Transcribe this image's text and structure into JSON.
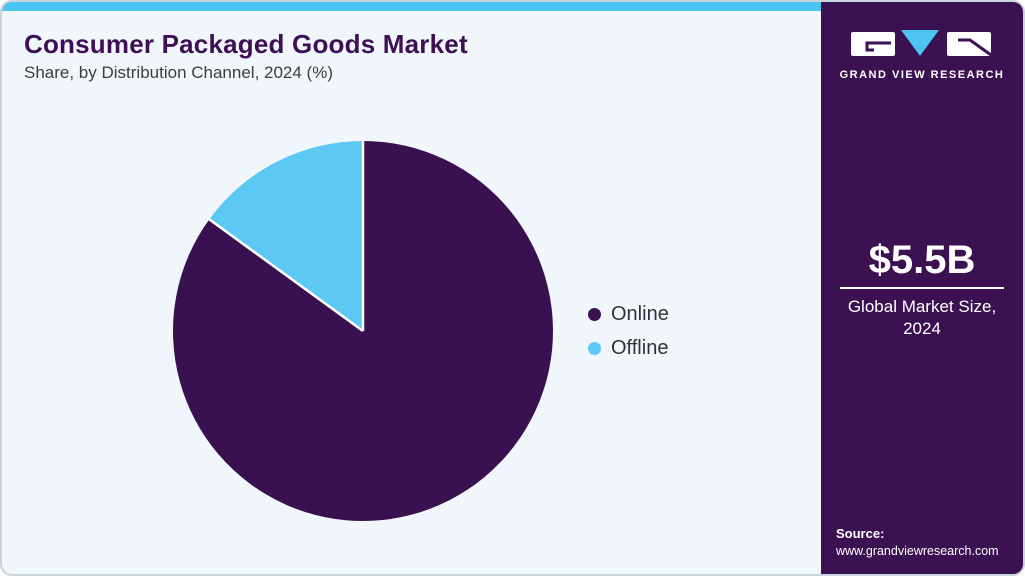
{
  "header": {
    "title": "Consumer Packaged Goods Market",
    "subtitle": "Share, by Distribution Channel, 2024 (%)"
  },
  "chart_data": {
    "type": "pie",
    "title": "Consumer Packaged Goods Market Share, by Distribution Channel, 2024 (%)",
    "slices": [
      {
        "label": "Online",
        "value": 85,
        "color": "#3A1150"
      },
      {
        "label": "Offline",
        "value": 15,
        "color": "#5CC9F5"
      }
    ],
    "start_angle": "12-oclock",
    "direction": "clockwise",
    "legend_position": "right-middle",
    "data_labels": false
  },
  "sidebar": {
    "logo_text": "GRAND VIEW RESEARCH",
    "market_size": {
      "value": "$5.5B",
      "label": "Global Market Size, 2024"
    },
    "source": {
      "label": "Source:",
      "url": "www.grandviewresearch.com"
    }
  },
  "colors": {
    "brand_purple": "#3B1152",
    "accent_blue": "#4CC3F1",
    "pie_online": "#3A1150",
    "pie_offline": "#5CC9F5",
    "card_background": "#F1F6FB",
    "title_purple": "#3D1056"
  }
}
